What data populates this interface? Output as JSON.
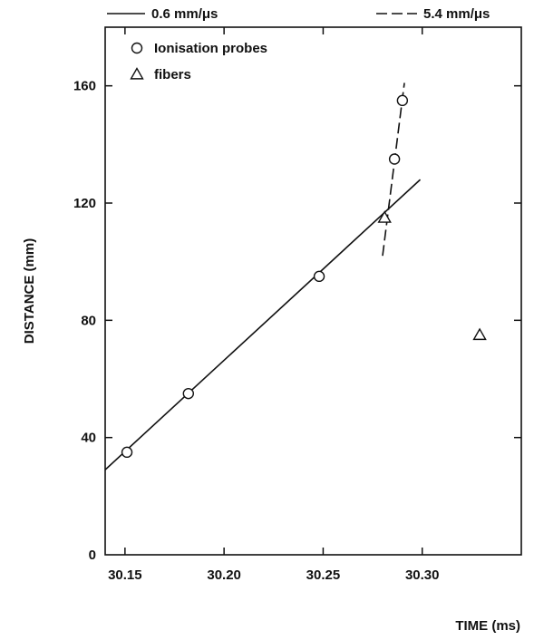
{
  "chart_data": {
    "type": "scatter",
    "title": "",
    "xlabel": "TIME (ms)",
    "ylabel": "DISTANCE (mm)",
    "xlim": [
      30.14,
      30.35
    ],
    "ylim": [
      0,
      180
    ],
    "x_ticks": [
      30.15,
      30.2,
      30.25,
      30.3
    ],
    "x_tick_labels": [
      "30.15",
      "30.20",
      "30.25",
      "30.30"
    ],
    "y_ticks": [
      0,
      40,
      80,
      120,
      160
    ],
    "y_tick_labels": [
      "0",
      "40",
      "80",
      "120",
      "160"
    ],
    "grid": false,
    "legend_position": "top-left",
    "series": [
      {
        "name": "Ionisation probes",
        "marker": "circle",
        "points": [
          {
            "x": 30.151,
            "y": 35
          },
          {
            "x": 30.182,
            "y": 55
          },
          {
            "x": 30.248,
            "y": 95
          },
          {
            "x": 30.286,
            "y": 135
          },
          {
            "x": 30.29,
            "y": 155
          }
        ]
      },
      {
        "name": "fibers",
        "marker": "triangle",
        "points": [
          {
            "x": 30.281,
            "y": 115
          },
          {
            "x": 30.329,
            "y": 75
          }
        ]
      }
    ],
    "fit_lines": [
      {
        "name": "0.6 mm/μs",
        "style": "solid",
        "from": {
          "x": 30.14,
          "y": 29
        },
        "to": {
          "x": 30.299,
          "y": 128
        }
      },
      {
        "name": "5.4 mm/μs",
        "style": "dashed",
        "from": {
          "x": 30.28,
          "y": 102
        },
        "to": {
          "x": 30.291,
          "y": 161
        }
      }
    ],
    "colors": {
      "ink": "#111111",
      "background": "#ffffff"
    }
  }
}
